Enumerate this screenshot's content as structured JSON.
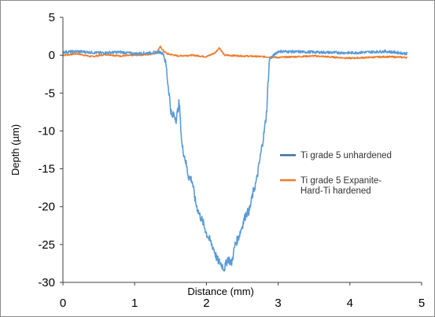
{
  "chart_data": {
    "type": "line",
    "title": "",
    "xlabel": "Distance (mm)",
    "ylabel": "Depth (µm)",
    "xlim": [
      0,
      5
    ],
    "ylim": [
      -30,
      5
    ],
    "x_ticks": [
      "0",
      "1",
      "2",
      "3",
      "4",
      "5"
    ],
    "y_ticks": [
      "5",
      "0",
      "-5",
      "-10",
      "-15",
      "-20",
      "-25",
      "-30"
    ],
    "grid": false,
    "legend_position": "right",
    "series": [
      {
        "name": "Ti grade 5 unhardened",
        "color": "#5b9bd5",
        "legend_color": "#3f6fa8",
        "x": [
          0.0,
          0.2,
          0.5,
          0.8,
          1.0,
          1.2,
          1.35,
          1.4,
          1.44,
          1.46,
          1.48,
          1.5,
          1.52,
          1.55,
          1.58,
          1.62,
          1.66,
          1.7,
          1.75,
          1.8,
          1.85,
          1.9,
          1.95,
          2.0,
          2.05,
          2.1,
          2.15,
          2.2,
          2.25,
          2.3,
          2.35,
          2.4,
          2.45,
          2.5,
          2.55,
          2.6,
          2.65,
          2.7,
          2.75,
          2.8,
          2.84,
          2.86,
          2.88,
          3.0,
          3.5,
          4.0,
          4.5,
          4.8
        ],
        "y": [
          0.4,
          0.5,
          0.3,
          0.4,
          0.2,
          0.3,
          0.4,
          0.2,
          -1.5,
          -3.5,
          -5,
          -7,
          -8.2,
          -7.8,
          -8.5,
          -6.2,
          -12,
          -13.5,
          -16,
          -16.5,
          -19.5,
          -21,
          -22,
          -23.5,
          -24.5,
          -25.5,
          -27,
          -27.5,
          -28.2,
          -26.8,
          -27.5,
          -25,
          -24,
          -22.5,
          -21,
          -20.5,
          -18.2,
          -16.5,
          -13.5,
          -10.5,
          -7.5,
          -3.5,
          -0.5,
          0.5,
          0.4,
          0.3,
          0.5,
          0.2
        ],
        "noise": 0.35
      },
      {
        "name": "Ti grade 5 Expanite-Hard-Ti hardened",
        "color": "#ed7d31",
        "legend_color": "#ed7d31",
        "x": [
          0.0,
          0.2,
          0.4,
          0.6,
          0.8,
          1.0,
          1.2,
          1.3,
          1.36,
          1.4,
          1.45,
          1.6,
          1.8,
          2.0,
          2.12,
          2.18,
          2.25,
          2.5,
          2.8,
          3.0,
          3.5,
          4.0,
          4.5,
          4.8
        ],
        "y": [
          0.0,
          0.2,
          -0.2,
          0.1,
          -0.1,
          0.0,
          0.1,
          0.3,
          1.1,
          0.6,
          0.2,
          -0.1,
          0.0,
          -0.2,
          0.3,
          1.0,
          0.0,
          -0.1,
          -0.2,
          -0.3,
          -0.1,
          -0.4,
          -0.2,
          -0.3
        ],
        "noise": 0.2
      }
    ],
    "legend_labels": [
      [
        "Ti grade 5 unhardened"
      ],
      [
        "Ti grade 5 Expanite-",
        "Hard-Ti hardened"
      ]
    ]
  }
}
